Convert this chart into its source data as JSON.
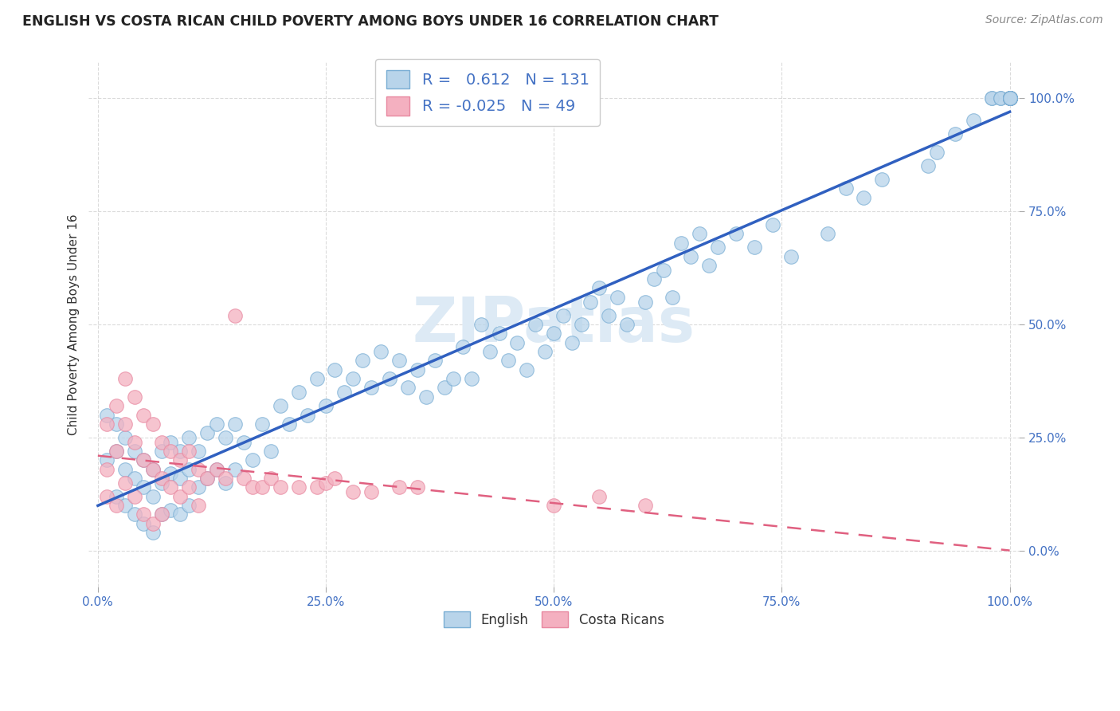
{
  "title": "ENGLISH VS COSTA RICAN CHILD POVERTY AMONG BOYS UNDER 16 CORRELATION CHART",
  "source": "Source: ZipAtlas.com",
  "ylabel": "Child Poverty Among Boys Under 16",
  "english_R": 0.612,
  "english_N": 131,
  "costarican_R": -0.025,
  "costarican_N": 49,
  "english_color": "#b8d4ea",
  "costarican_color": "#f4b0c0",
  "english_edge_color": "#7aaed4",
  "costarican_edge_color": "#e888a0",
  "english_line_color": "#3060c0",
  "costarican_line_color": "#e06080",
  "title_color": "#222222",
  "source_color": "#888888",
  "tick_color": "#4472c4",
  "ylabel_color": "#333333",
  "grid_color": "#cccccc",
  "watermark_color": "#ddeaf5",
  "background_color": "#ffffff",
  "legend_edge_color": "#cccccc",
  "english_x": [
    0.01,
    0.01,
    0.02,
    0.02,
    0.02,
    0.03,
    0.03,
    0.03,
    0.04,
    0.04,
    0.04,
    0.05,
    0.05,
    0.05,
    0.06,
    0.06,
    0.06,
    0.07,
    0.07,
    0.07,
    0.08,
    0.08,
    0.08,
    0.09,
    0.09,
    0.09,
    0.1,
    0.1,
    0.1,
    0.11,
    0.11,
    0.12,
    0.12,
    0.13,
    0.13,
    0.14,
    0.14,
    0.15,
    0.15,
    0.16,
    0.17,
    0.18,
    0.19,
    0.2,
    0.21,
    0.22,
    0.23,
    0.24,
    0.25,
    0.26,
    0.27,
    0.28,
    0.29,
    0.3,
    0.31,
    0.32,
    0.33,
    0.34,
    0.35,
    0.36,
    0.37,
    0.38,
    0.39,
    0.4,
    0.41,
    0.42,
    0.43,
    0.44,
    0.45,
    0.46,
    0.47,
    0.48,
    0.49,
    0.5,
    0.51,
    0.52,
    0.53,
    0.54,
    0.55,
    0.56,
    0.57,
    0.58,
    0.6,
    0.61,
    0.62,
    0.63,
    0.64,
    0.65,
    0.66,
    0.67,
    0.68,
    0.7,
    0.72,
    0.74,
    0.76,
    0.8,
    0.82,
    0.84,
    0.86,
    0.91,
    0.92,
    0.94,
    0.96,
    0.98,
    0.98,
    0.99,
    0.99,
    1.0,
    1.0,
    1.0,
    1.0,
    1.0,
    1.0,
    1.0,
    1.0,
    1.0,
    1.0,
    1.0,
    1.0,
    1.0,
    1.0,
    1.0,
    1.0,
    1.0,
    1.0,
    1.0,
    1.0,
    1.0,
    1.0,
    1.0,
    1.0
  ],
  "english_y": [
    0.3,
    0.2,
    0.28,
    0.22,
    0.12,
    0.25,
    0.18,
    0.1,
    0.22,
    0.16,
    0.08,
    0.2,
    0.14,
    0.06,
    0.18,
    0.12,
    0.04,
    0.22,
    0.15,
    0.08,
    0.24,
    0.17,
    0.09,
    0.22,
    0.16,
    0.08,
    0.25,
    0.18,
    0.1,
    0.22,
    0.14,
    0.26,
    0.16,
    0.28,
    0.18,
    0.25,
    0.15,
    0.28,
    0.18,
    0.24,
    0.2,
    0.28,
    0.22,
    0.32,
    0.28,
    0.35,
    0.3,
    0.38,
    0.32,
    0.4,
    0.35,
    0.38,
    0.42,
    0.36,
    0.44,
    0.38,
    0.42,
    0.36,
    0.4,
    0.34,
    0.42,
    0.36,
    0.38,
    0.45,
    0.38,
    0.5,
    0.44,
    0.48,
    0.42,
    0.46,
    0.4,
    0.5,
    0.44,
    0.48,
    0.52,
    0.46,
    0.5,
    0.55,
    0.58,
    0.52,
    0.56,
    0.5,
    0.55,
    0.6,
    0.62,
    0.56,
    0.68,
    0.65,
    0.7,
    0.63,
    0.67,
    0.7,
    0.67,
    0.72,
    0.65,
    0.7,
    0.8,
    0.78,
    0.82,
    0.85,
    0.88,
    0.92,
    0.95,
    1.0,
    1.0,
    1.0,
    1.0,
    1.0,
    1.0,
    1.0,
    1.0,
    1.0,
    1.0,
    1.0,
    1.0,
    1.0,
    1.0,
    1.0,
    1.0,
    1.0,
    1.0,
    1.0,
    1.0,
    1.0,
    1.0,
    1.0,
    1.0,
    1.0,
    1.0,
    1.0,
    1.0
  ],
  "costarican_x": [
    0.01,
    0.01,
    0.01,
    0.02,
    0.02,
    0.02,
    0.03,
    0.03,
    0.03,
    0.04,
    0.04,
    0.04,
    0.05,
    0.05,
    0.05,
    0.06,
    0.06,
    0.06,
    0.07,
    0.07,
    0.07,
    0.08,
    0.08,
    0.09,
    0.09,
    0.1,
    0.1,
    0.11,
    0.11,
    0.12,
    0.13,
    0.14,
    0.15,
    0.16,
    0.17,
    0.18,
    0.19,
    0.2,
    0.22,
    0.24,
    0.25,
    0.26,
    0.28,
    0.3,
    0.33,
    0.35,
    0.5,
    0.55,
    0.6
  ],
  "costarican_y": [
    0.18,
    0.28,
    0.12,
    0.32,
    0.22,
    0.1,
    0.38,
    0.28,
    0.15,
    0.34,
    0.24,
    0.12,
    0.3,
    0.2,
    0.08,
    0.28,
    0.18,
    0.06,
    0.24,
    0.16,
    0.08,
    0.22,
    0.14,
    0.2,
    0.12,
    0.22,
    0.14,
    0.18,
    0.1,
    0.16,
    0.18,
    0.16,
    0.52,
    0.16,
    0.14,
    0.14,
    0.16,
    0.14,
    0.14,
    0.14,
    0.15,
    0.16,
    0.13,
    0.13,
    0.14,
    0.14,
    0.1,
    0.12,
    0.1
  ],
  "xlim": [
    0.0,
    1.0
  ],
  "ylim": [
    -0.08,
    1.08
  ],
  "xticks": [
    0.0,
    0.25,
    0.5,
    0.75,
    1.0
  ],
  "yticks": [
    0.0,
    0.25,
    0.5,
    0.75,
    1.0
  ],
  "xtick_labels": [
    "0.0%",
    "25.0%",
    "50.0%",
    "75.0%",
    "100.0%"
  ],
  "ytick_labels": [
    "0.0%",
    "25.0%",
    "50.0%",
    "75.0%",
    "100.0%"
  ]
}
